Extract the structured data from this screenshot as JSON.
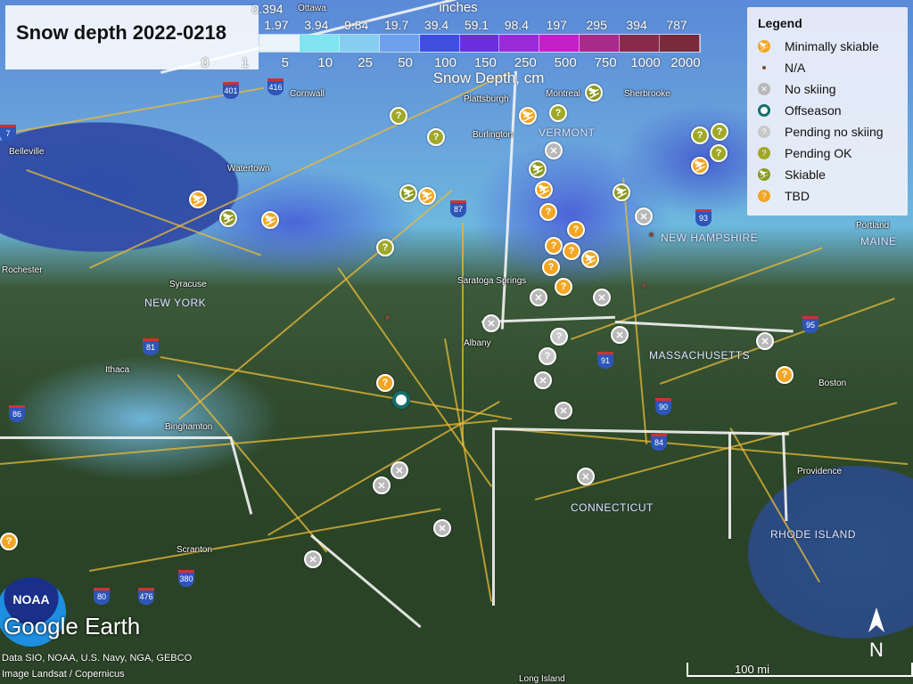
{
  "title": "Snow depth 2022-0218",
  "colorbar": {
    "unit_top": "inches",
    "unit_bottom": "Snow Depth, cm",
    "inches_labels": [
      "0.394",
      "1.97",
      "3.94",
      "9.84",
      "19.7",
      "39.4",
      "59.1",
      "98.4",
      "197",
      "295",
      "394",
      "787"
    ],
    "cm_labels": [
      "0",
      "1",
      "5",
      "10",
      "25",
      "50",
      "100",
      "150",
      "250",
      "500",
      "750",
      "1000",
      "2000"
    ],
    "colors": [
      "#e8f4f8",
      "#7fe3f0",
      "#86cdf0",
      "#6fa0ec",
      "#3f4ee0",
      "#6a2ee0",
      "#9a2ad8",
      "#c420c8",
      "#a82a8a",
      "#8a2a4a",
      "#7a2a3a"
    ]
  },
  "legend": {
    "title": "Legend",
    "items": [
      {
        "label": "Minimally skiable",
        "icon": "skier-icon",
        "color": "#f2a623"
      },
      {
        "label": "N/A",
        "icon": "dot-icon",
        "color": "#7a4a3a"
      },
      {
        "label": "No skiing",
        "icon": "x-icon",
        "color": "#b8b8b8"
      },
      {
        "label": "Offseason",
        "icon": "ring-icon",
        "color": "#146e6e"
      },
      {
        "label": "Pending no skiing",
        "icon": "question-icon",
        "color": "#c8c8c8"
      },
      {
        "label": "Pending OK",
        "icon": "question-icon",
        "color": "#a0a828"
      },
      {
        "label": "Skiable",
        "icon": "skier-icon",
        "color": "#8a9a20"
      },
      {
        "label": "TBD",
        "icon": "question-icon",
        "color": "#f2a623"
      }
    ]
  },
  "places": [
    "Ottawa",
    "Montreal",
    "Cornwall",
    "Sherbrooke",
    "Plattsburgh",
    "Burlington",
    "Watertown",
    "Belleville",
    "Rochester",
    "Syracuse",
    "Ithaca",
    "Binghamton",
    "Scranton",
    "Albany",
    "Saratoga Springs",
    "Boston",
    "Providence",
    "Portland",
    "Long Island"
  ],
  "states": [
    "VERMONT",
    "NEW YORK",
    "NEW HAMPSHIRE",
    "MASSACHUSETTS",
    "CONNECTICUT",
    "RHODE ISLAND",
    "MAINE"
  ],
  "highways": [
    "416",
    "401",
    "7",
    "81",
    "87",
    "93",
    "95",
    "91",
    "90",
    "84",
    "86",
    "380",
    "476",
    "80"
  ],
  "marker_statuses": [
    "Minimally skiable",
    "Minimally skiable",
    "Minimally skiable",
    "Minimally skiable",
    "Minimally skiable",
    "Minimally skiable",
    "Minimally skiable",
    "Skiable",
    "Skiable",
    "Skiable",
    "Skiable",
    "Skiable",
    "Pending OK",
    "Pending OK",
    "Pending OK",
    "Pending OK",
    "Pending OK",
    "Pending OK",
    "Pending OK",
    "TBD",
    "TBD",
    "TBD",
    "TBD",
    "TBD",
    "TBD",
    "TBD",
    "TBD",
    "TBD",
    "No skiing",
    "No skiing",
    "No skiing",
    "No skiing",
    "No skiing",
    "No skiing",
    "No skiing",
    "No skiing",
    "No skiing",
    "No skiing",
    "No skiing",
    "No skiing",
    "No skiing",
    "No skiing",
    "Pending no skiing",
    "Pending no skiing",
    "Offseason",
    "N/A",
    "N/A",
    "N/A"
  ],
  "branding": {
    "logo": "NOAA",
    "google_earth": "Google Earth"
  },
  "attribution": [
    "Data SIO, NOAA, U.S. Navy, NGA, GEBCO",
    "Image Landsat / Copernicus"
  ],
  "scale": "100 mi",
  "north": "N"
}
